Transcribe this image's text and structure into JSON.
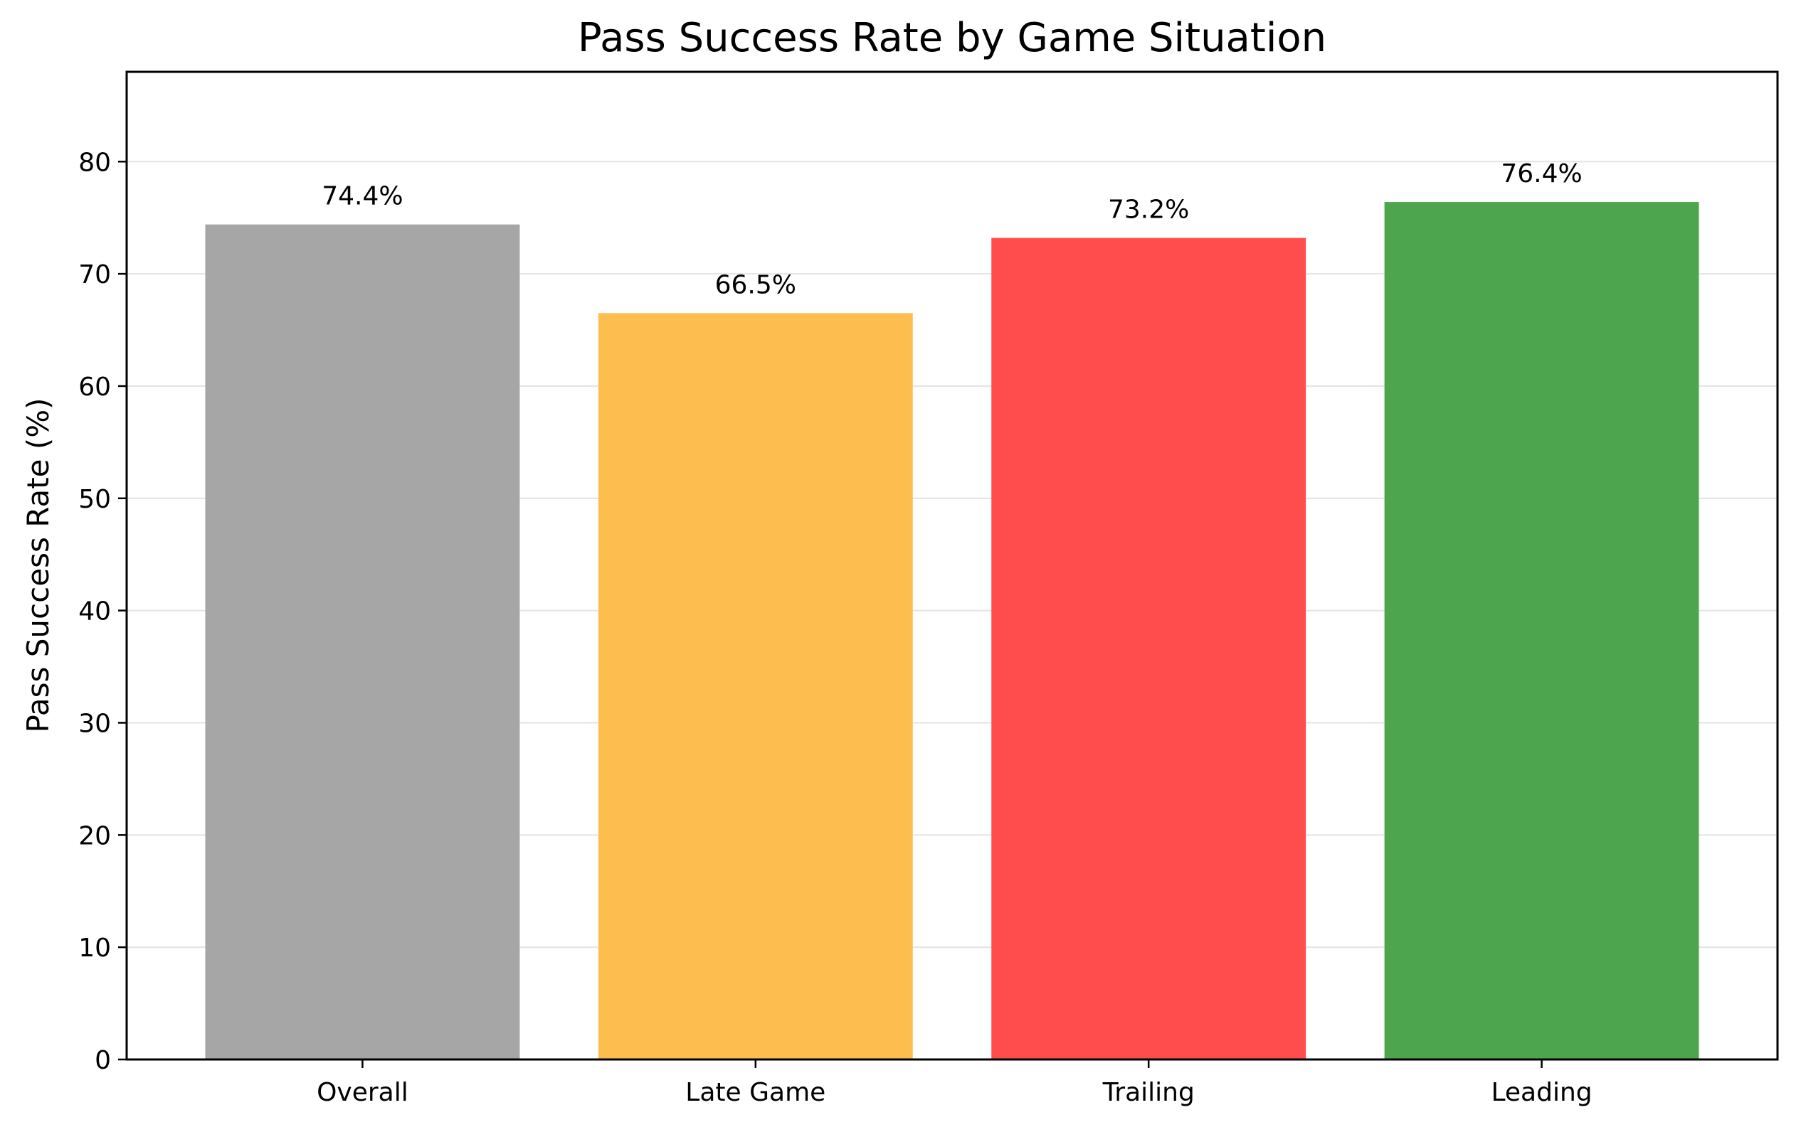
{
  "chart_data": {
    "type": "bar",
    "title": "Pass Success Rate by Game Situation",
    "xlabel": "",
    "ylabel": "Pass Success Rate (%)",
    "categories": [
      "Overall",
      "Late Game",
      "Trailing",
      "Leading"
    ],
    "values": [
      74.4,
      66.5,
      73.2,
      76.4
    ],
    "value_labels": [
      "74.4%",
      "66.5%",
      "73.2%",
      "76.4%"
    ],
    "colors": [
      "#a6a6a6",
      "#fdbe4f",
      "#ff4d4d",
      "#4da64d"
    ],
    "ylim": [
      0,
      88
    ],
    "yticks": [
      0,
      10,
      20,
      30,
      40,
      50,
      60,
      70,
      80
    ],
    "grid": "horizontal",
    "legend": "none"
  }
}
